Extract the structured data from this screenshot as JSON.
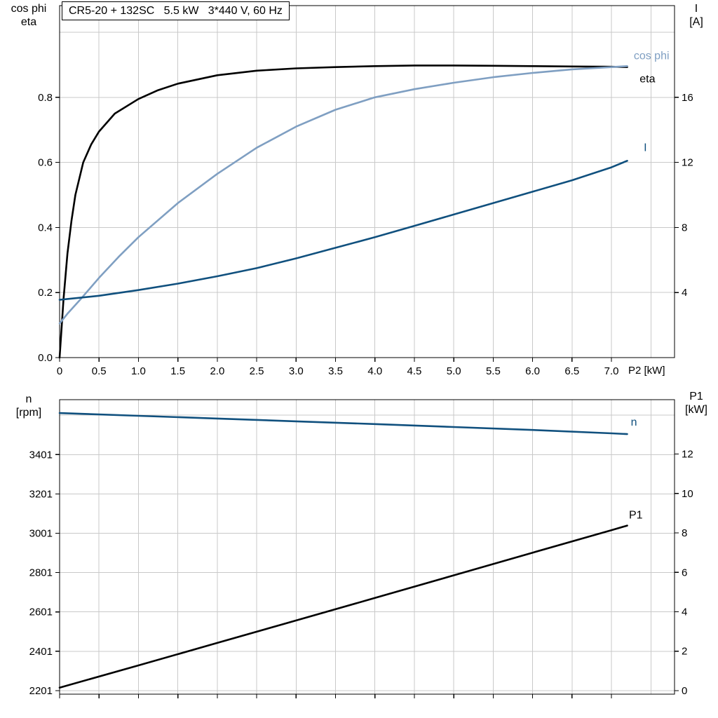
{
  "colors": {
    "black": "#000000",
    "light_blue": "#7f9fc2",
    "dark_blue": "#10507e",
    "grid": "#c9c9c9",
    "axis": "#000000"
  },
  "chart_data": [
    {
      "type": "line",
      "title": "CR5-20 + 132SC   5.5 kW   3*440 V, 60 Hz",
      "x_label": "P2 [kW]",
      "x_range": [
        0,
        7.8
      ],
      "x_ticks": [
        "0",
        "0.5",
        "1.0",
        "1.5",
        "2.0",
        "2.5",
        "3.0",
        "3.5",
        "4.0",
        "4.5",
        "5.0",
        "5.5",
        "6.0",
        "6.5",
        "7.0"
      ],
      "show_x_tick_labels": true,
      "grid_extra": {
        "x": [
          7.5
        ],
        "left": [
          1.0
        ]
      },
      "left_axis": {
        "label": [
          "cos phi",
          "eta"
        ],
        "range": [
          0,
          1.082
        ],
        "ticks": [
          "0.0",
          "0.2",
          "0.4",
          "0.6",
          "0.8"
        ]
      },
      "right_axis": {
        "label": [
          "I",
          "[A]"
        ],
        "range": [
          0,
          21.64
        ],
        "ticks": [
          "4",
          "8",
          "12",
          "16"
        ]
      },
      "series": [
        {
          "name": "eta",
          "label": "eta",
          "axis": "left",
          "color": "black",
          "x": [
            0,
            0.05,
            0.1,
            0.15,
            0.2,
            0.3,
            0.4,
            0.5,
            0.7,
            1.0,
            1.25,
            1.5,
            2.0,
            2.5,
            3.0,
            3.5,
            4.0,
            4.5,
            5.0,
            5.5,
            6.0,
            6.5,
            7.0,
            7.2
          ],
          "y": [
            0,
            0.18,
            0.32,
            0.42,
            0.5,
            0.6,
            0.655,
            0.695,
            0.75,
            0.795,
            0.822,
            0.842,
            0.868,
            0.882,
            0.889,
            0.893,
            0.896,
            0.898,
            0.898,
            0.897,
            0.896,
            0.895,
            0.894,
            0.893
          ],
          "label_offset": [
            40,
            22
          ]
        },
        {
          "name": "cos-phi",
          "label": "cos phi",
          "axis": "left",
          "color": "light_blue",
          "x": [
            0,
            0.1,
            0.25,
            0.5,
            0.75,
            1.0,
            1.5,
            2.0,
            2.5,
            3.0,
            3.5,
            4.0,
            4.5,
            5.0,
            5.5,
            6.0,
            6.5,
            7.0,
            7.2
          ],
          "y": [
            0.105,
            0.135,
            0.175,
            0.245,
            0.31,
            0.37,
            0.475,
            0.565,
            0.645,
            0.71,
            0.762,
            0.8,
            0.825,
            0.845,
            0.862,
            0.875,
            0.886,
            0.893,
            0.896
          ],
          "label_offset": [
            60,
            -10
          ]
        },
        {
          "name": "current",
          "label": "I",
          "axis": "right",
          "color": "dark_blue",
          "x": [
            0,
            0.5,
            1.0,
            1.5,
            2.0,
            2.5,
            3.0,
            3.5,
            4.0,
            4.5,
            5.0,
            5.5,
            6.0,
            6.5,
            7.0,
            7.2
          ],
          "y": [
            3.55,
            3.8,
            4.15,
            4.55,
            5.0,
            5.5,
            6.1,
            6.75,
            7.4,
            8.1,
            8.8,
            9.5,
            10.2,
            10.9,
            11.7,
            12.1
          ],
          "label_offset": [
            28,
            -14
          ]
        }
      ]
    },
    {
      "type": "line",
      "title": "",
      "x_label": "",
      "x_range": [
        0,
        7.8
      ],
      "x_ticks": [
        "0",
        "0.5",
        "1.0",
        "1.5",
        "2.0",
        "2.5",
        "3.0",
        "3.5",
        "4.0",
        "4.5",
        "5.0",
        "5.5",
        "6.0",
        "6.5",
        "7.0"
      ],
      "show_x_tick_labels": false,
      "grid_extra": {
        "x": [
          7.5
        ],
        "left": [
          3601
        ]
      },
      "left_axis": {
        "label": [
          "n",
          "[rpm]"
        ],
        "range": [
          2183,
          3680
        ],
        "ticks": [
          "2201",
          "2401",
          "2601",
          "2801",
          "3001",
          "3201",
          "3401"
        ]
      },
      "right_axis": {
        "label": [
          "P1",
          "[kW]"
        ],
        "range": [
          -0.18,
          14.76
        ],
        "ticks": [
          "0",
          "2",
          "4",
          "6",
          "8",
          "10",
          "12"
        ]
      },
      "series": [
        {
          "name": "speed",
          "label": "n",
          "axis": "left",
          "color": "dark_blue",
          "x": [
            0,
            1,
            2,
            3,
            4,
            5,
            6,
            7,
            7.2
          ],
          "y": [
            3612,
            3598,
            3584,
            3570,
            3556,
            3541,
            3526,
            3509,
            3505
          ],
          "label_offset": [
            14,
            -12
          ]
        },
        {
          "name": "input-power",
          "label": "P1",
          "axis": "right",
          "color": "black",
          "x": [
            0,
            1,
            2,
            3,
            4,
            5,
            6,
            7,
            7.2
          ],
          "y": [
            0.15,
            1.28,
            2.42,
            3.56,
            4.7,
            5.85,
            7.0,
            8.14,
            8.37
          ],
          "label_offset": [
            22,
            -10
          ]
        }
      ]
    }
  ]
}
